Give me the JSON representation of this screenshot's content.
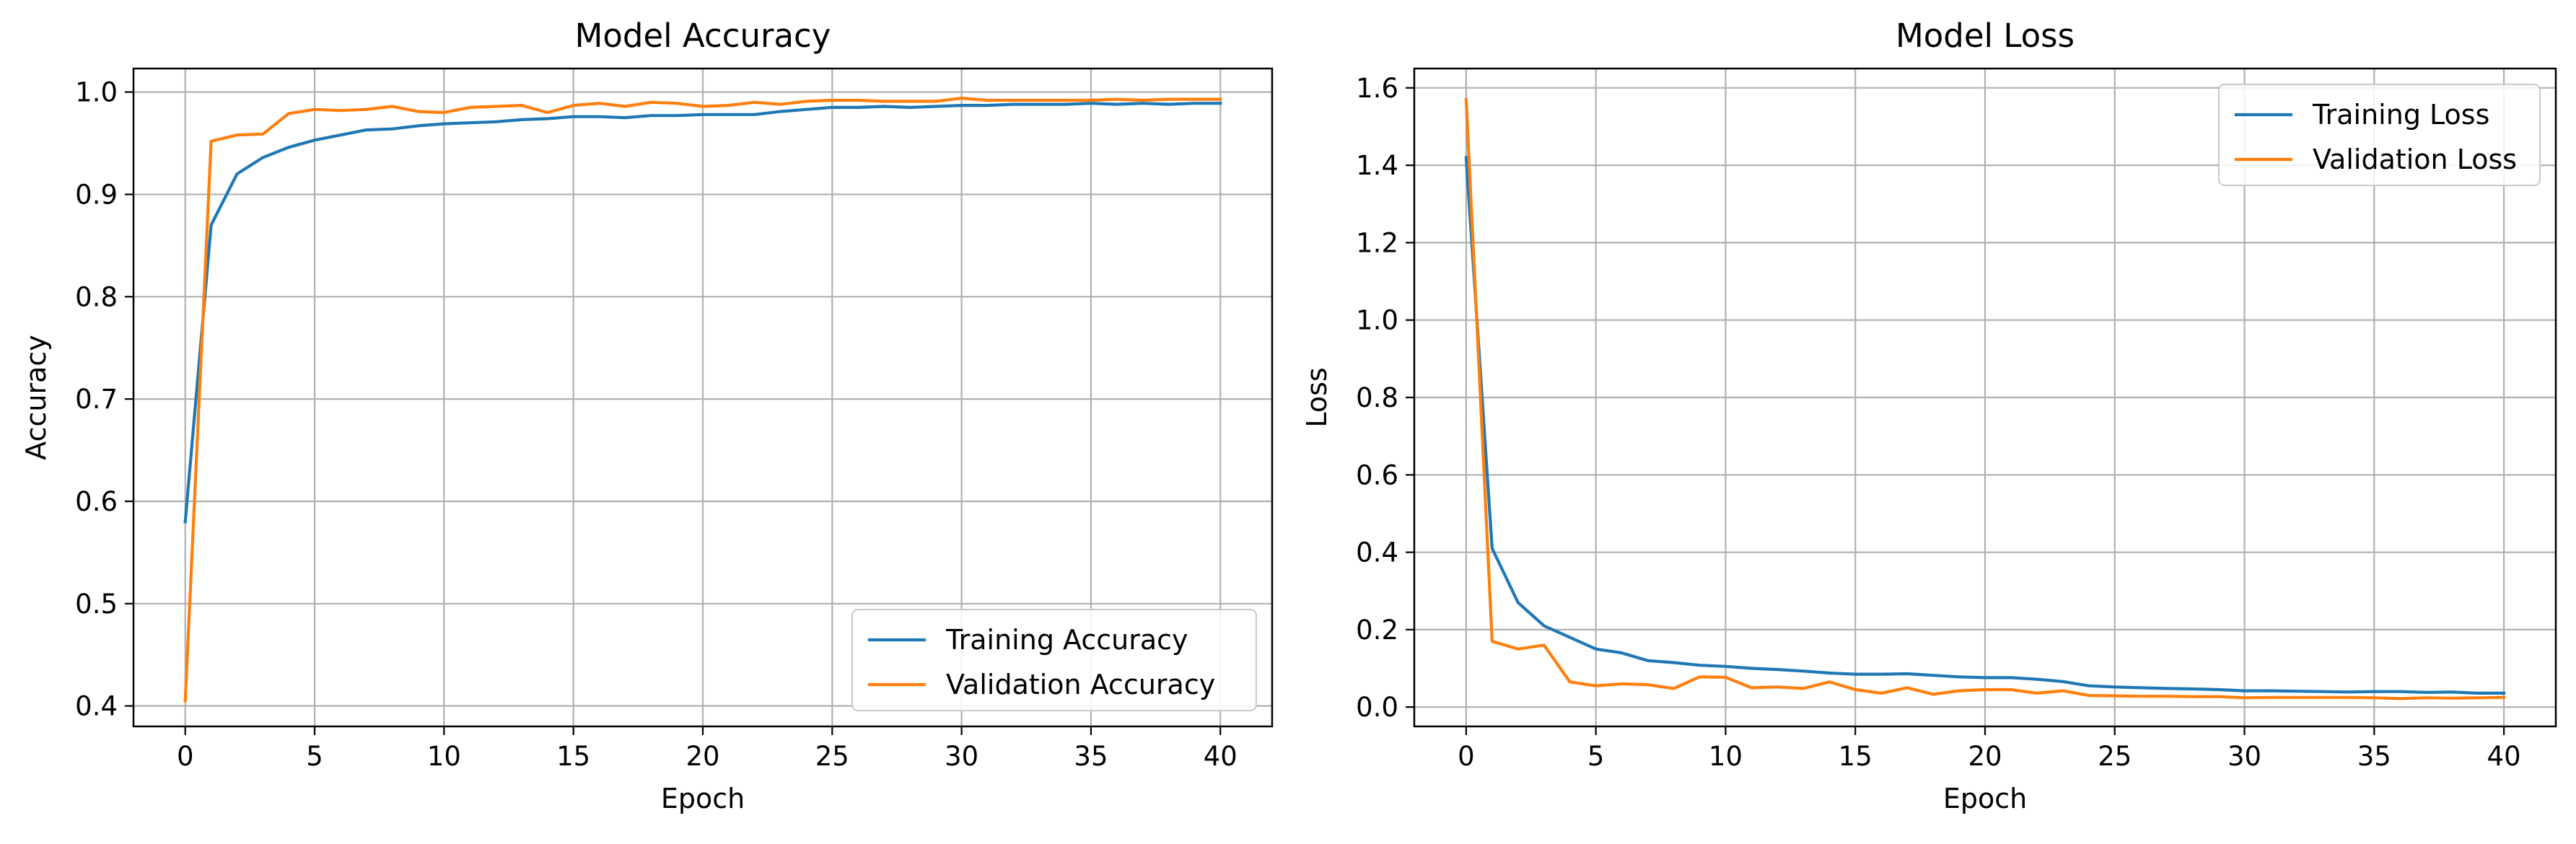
{
  "chart_data": [
    {
      "type": "line",
      "title": "Model Accuracy",
      "xlabel": "Epoch",
      "ylabel": "Accuracy",
      "xlim": [
        -2,
        42
      ],
      "ylim": [
        0.38,
        1.023
      ],
      "xticks": [
        0,
        5,
        10,
        15,
        20,
        25,
        30,
        35,
        40
      ],
      "yticks": [
        0.4,
        0.5,
        0.6,
        0.7,
        0.8,
        0.9,
        1.0
      ],
      "ytick_labels": [
        "0.4",
        "0.5",
        "0.6",
        "0.7",
        "0.8",
        "0.9",
        "1.0"
      ],
      "grid": true,
      "legend_position": "lower-right",
      "x": [
        0,
        1,
        2,
        3,
        4,
        5,
        6,
        7,
        8,
        9,
        10,
        11,
        12,
        13,
        14,
        15,
        16,
        17,
        18,
        19,
        20,
        21,
        22,
        23,
        24,
        25,
        26,
        27,
        28,
        29,
        30,
        31,
        32,
        33,
        34,
        35,
        36,
        37,
        38,
        39,
        40
      ],
      "series": [
        {
          "name": "Training Accuracy",
          "color": "#1f77b4",
          "values": [
            0.58,
            0.87,
            0.92,
            0.936,
            0.946,
            0.953,
            0.958,
            0.963,
            0.964,
            0.967,
            0.969,
            0.97,
            0.971,
            0.973,
            0.974,
            0.976,
            0.976,
            0.975,
            0.977,
            0.977,
            0.978,
            0.978,
            0.978,
            0.981,
            0.983,
            0.985,
            0.985,
            0.986,
            0.985,
            0.986,
            0.987,
            0.987,
            0.988,
            0.988,
            0.988,
            0.989,
            0.988,
            0.989,
            0.988,
            0.989,
            0.989
          ]
        },
        {
          "name": "Validation Accuracy",
          "color": "#ff7f0e",
          "values": [
            0.405,
            0.952,
            0.958,
            0.959,
            0.979,
            0.983,
            0.982,
            0.983,
            0.986,
            0.981,
            0.98,
            0.985,
            0.986,
            0.987,
            0.98,
            0.987,
            0.989,
            0.986,
            0.99,
            0.989,
            0.986,
            0.987,
            0.99,
            0.988,
            0.991,
            0.992,
            0.992,
            0.991,
            0.991,
            0.991,
            0.994,
            0.992,
            0.992,
            0.992,
            0.992,
            0.992,
            0.993,
            0.992,
            0.993,
            0.993,
            0.993
          ]
        }
      ]
    },
    {
      "type": "line",
      "title": "Model Loss",
      "xlabel": "Epoch",
      "ylabel": "Loss",
      "xlim": [
        -2,
        42
      ],
      "ylim": [
        -0.05,
        1.65
      ],
      "xticks": [
        0,
        5,
        10,
        15,
        20,
        25,
        30,
        35,
        40
      ],
      "yticks": [
        0,
        0.2,
        0.4,
        0.6,
        0.8,
        1.0,
        1.2,
        1.4,
        1.6
      ],
      "ytick_labels": [
        "0.0",
        "0.2",
        "0.4",
        "0.6",
        "0.8",
        "1.0",
        "1.2",
        "1.4",
        "1.6"
      ],
      "grid": true,
      "legend_position": "upper-right",
      "x": [
        0,
        1,
        2,
        3,
        4,
        5,
        6,
        7,
        8,
        9,
        10,
        11,
        12,
        13,
        14,
        15,
        16,
        17,
        18,
        19,
        20,
        21,
        22,
        23,
        24,
        25,
        26,
        27,
        28,
        29,
        30,
        31,
        32,
        33,
        34,
        35,
        36,
        37,
        38,
        39,
        40
      ],
      "series": [
        {
          "name": "Training Loss",
          "color": "#1f77b4",
          "values": [
            1.42,
            0.41,
            0.27,
            0.21,
            0.18,
            0.15,
            0.14,
            0.12,
            0.115,
            0.108,
            0.105,
            0.1,
            0.097,
            0.093,
            0.088,
            0.085,
            0.085,
            0.086,
            0.082,
            0.078,
            0.076,
            0.076,
            0.072,
            0.066,
            0.055,
            0.052,
            0.05,
            0.048,
            0.047,
            0.045,
            0.042,
            0.042,
            0.041,
            0.04,
            0.039,
            0.04,
            0.04,
            0.038,
            0.039,
            0.036,
            0.036
          ]
        },
        {
          "name": "Validation Loss",
          "color": "#ff7f0e",
          "values": [
            1.57,
            0.17,
            0.15,
            0.16,
            0.065,
            0.055,
            0.06,
            0.058,
            0.048,
            0.078,
            0.077,
            0.05,
            0.052,
            0.048,
            0.065,
            0.045,
            0.036,
            0.05,
            0.033,
            0.042,
            0.045,
            0.045,
            0.036,
            0.042,
            0.03,
            0.029,
            0.028,
            0.028,
            0.027,
            0.027,
            0.024,
            0.025,
            0.025,
            0.025,
            0.025,
            0.024,
            0.022,
            0.024,
            0.023,
            0.024,
            0.025
          ]
        }
      ]
    }
  ]
}
